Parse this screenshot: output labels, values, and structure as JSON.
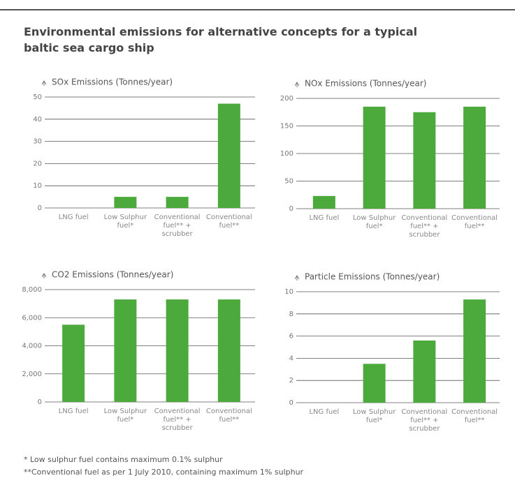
{
  "title": "Environmental emissions for alternative concepts for a typical baltic sea cargo ship",
  "footnotes": [
    "*  Low sulphur fuel contains maximum 0.1% sulphur",
    "**Conventional fuel as per 1 July 2010, containing maximum 1% sulphur"
  ],
  "chart_data": [
    {
      "type": "bar",
      "title": "SOx Emissions (Tonnes/year)",
      "categories": [
        "LNG fuel",
        "Low Sulphur fuel*",
        "Conventional fuel** + scrubber",
        "Conventional fuel**"
      ],
      "values": [
        0,
        5,
        5,
        47
      ],
      "color": "#4caa3c",
      "ylim": [
        0,
        50
      ],
      "yticks": [
        0,
        10,
        20,
        30,
        40,
        50
      ],
      "grid": true
    },
    {
      "type": "bar",
      "title": "NOx Emissions (Tonnes/year)",
      "categories": [
        "LNG fuel",
        "Low Sulphur fuel*",
        "Conventional fuel** + scrubber",
        "Conventional fuel**"
      ],
      "values": [
        23,
        185,
        175,
        185
      ],
      "color": "#4caa3c",
      "ylim": [
        0,
        200
      ],
      "yticks": [
        0,
        50,
        100,
        150,
        200
      ],
      "grid": true
    },
    {
      "type": "bar",
      "title": "CO2 Emissions (Tonnes/year)",
      "categories": [
        "LNG fuel",
        "Low Sulphur fuel*",
        "Conventional fuel** + scrubber",
        "Conventional fuel**"
      ],
      "values": [
        5500,
        7300,
        7300,
        7300
      ],
      "color": "#4caa3c",
      "ylim": [
        0,
        8000
      ],
      "yticks": [
        0,
        {
          "value": 2000,
          "label": "2,000"
        },
        {
          "value": 4000,
          "label": "4,000"
        },
        {
          "value": 6000,
          "label": "6,000"
        },
        {
          "value": 8000,
          "label": "8,000"
        }
      ],
      "grid": true
    },
    {
      "type": "bar",
      "title": "Particle Emissions (Tonnes/year)",
      "categories": [
        "LNG fuel",
        "Low Sulphur fuel*",
        "Conventional fuel** + scrubber",
        "Conventional fuel**"
      ],
      "values": [
        0,
        3.5,
        5.6,
        9.3
      ],
      "color": "#4caa3c",
      "ylim": [
        0,
        10
      ],
      "yticks": [
        0,
        2,
        4,
        6,
        8,
        10
      ],
      "grid": true
    }
  ]
}
